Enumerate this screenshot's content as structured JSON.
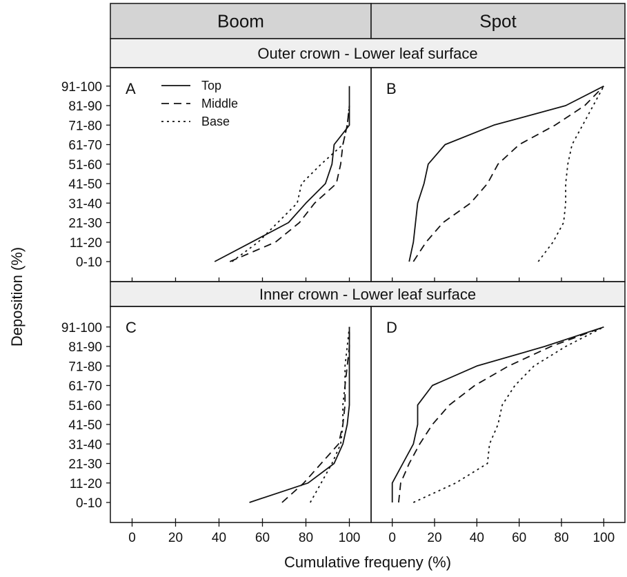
{
  "chart_data": {
    "type": "line",
    "xlabel": "Cumulative frequeny (%)",
    "ylabel": "Deposition (%)",
    "column_strips": [
      "Boom",
      "Spot"
    ],
    "row_strips": [
      "Outer crown - Lower leaf surface",
      "Inner crown - Lower leaf surface"
    ],
    "x_ticks": [
      0,
      20,
      40,
      60,
      80,
      100
    ],
    "xlim": [
      -10,
      110
    ],
    "y_categories": [
      "0-10",
      "11-20",
      "21-30",
      "31-40",
      "41-50",
      "51-60",
      "61-70",
      "71-80",
      "81-90",
      "91-100"
    ],
    "legend": [
      "Top",
      "Middle",
      "Base"
    ],
    "panels": [
      {
        "label": "A",
        "series": [
          {
            "name": "Top",
            "x": [
              38,
              55,
              72,
              80,
              89,
              92,
              93,
              100,
              100
            ],
            "y": [
              "0-10",
              "11-20",
              "21-30",
              "31-40",
              "41-50",
              "51-60",
              "61-70",
              "71-80",
              "91-100"
            ]
          },
          {
            "name": "Middle",
            "x": [
              45,
              66,
              77,
              84,
              94,
              96,
              97,
              99,
              100
            ],
            "y": [
              "0-10",
              "11-20",
              "21-30",
              "31-40",
              "41-50",
              "51-60",
              "61-70",
              "71-80",
              "81-90"
            ]
          },
          {
            "name": "Base",
            "x": [
              46,
              58,
              67,
              76,
              78,
              87,
              97,
              99,
              100
            ],
            "y": [
              "0-10",
              "11-20",
              "21-30",
              "31-40",
              "41-50",
              "51-60",
              "61-70",
              "71-80",
              "81-90"
            ]
          }
        ]
      },
      {
        "label": "B",
        "series": [
          {
            "name": "Top",
            "x": [
              8,
              10,
              11,
              12,
              15,
              17,
              25,
              48,
              82,
              100
            ],
            "y": [
              "0-10",
              "11-20",
              "21-30",
              "31-40",
              "41-50",
              "51-60",
              "61-70",
              "71-80",
              "81-90",
              "91-100"
            ]
          },
          {
            "name": "Middle",
            "x": [
              10,
              16,
              24,
              37,
              45,
              50,
              60,
              77,
              91,
              100
            ],
            "y": [
              "0-10",
              "11-20",
              "21-30",
              "31-40",
              "41-50",
              "51-60",
              "61-70",
              "71-80",
              "81-90",
              "91-100"
            ]
          },
          {
            "name": "Base",
            "x": [
              69,
              76,
              81,
              82,
              82,
              83,
              85,
              90,
              95,
              100
            ],
            "y": [
              "0-10",
              "11-20",
              "21-30",
              "31-40",
              "41-50",
              "51-60",
              "61-70",
              "71-80",
              "81-90",
              "91-100"
            ]
          }
        ]
      },
      {
        "label": "C",
        "series": [
          {
            "name": "Top",
            "x": [
              54,
              81,
              93,
              97,
              99,
              100,
              100,
              100,
              100,
              100
            ],
            "y": [
              "0-10",
              "11-20",
              "21-30",
              "31-40",
              "41-50",
              "51-60",
              "61-70",
              "71-80",
              "81-90",
              "91-100"
            ]
          },
          {
            "name": "Middle",
            "x": [
              69,
              79,
              87,
              95,
              97,
              98,
              98,
              99,
              100,
              100
            ],
            "y": [
              "0-10",
              "11-20",
              "21-30",
              "31-40",
              "41-50",
              "51-60",
              "61-70",
              "71-80",
              "81-90",
              "91-100"
            ]
          },
          {
            "name": "Base",
            "x": [
              82,
              87,
              92,
              96,
              97,
              97,
              98,
              98,
              99,
              100
            ],
            "y": [
              "0-10",
              "11-20",
              "21-30",
              "31-40",
              "41-50",
              "51-60",
              "61-70",
              "71-80",
              "81-90",
              "91-100"
            ]
          }
        ]
      },
      {
        "label": "D",
        "series": [
          {
            "name": "Top",
            "x": [
              0,
              0,
              5,
              10,
              12,
              12,
              19,
              40,
              72,
              100
            ],
            "y": [
              "0-10",
              "11-20",
              "21-30",
              "31-40",
              "41-50",
              "51-60",
              "61-70",
              "71-80",
              "81-90",
              "91-100"
            ]
          },
          {
            "name": "Middle",
            "x": [
              3,
              4,
              8,
              13,
              19,
              27,
              39,
              55,
              75,
              100
            ],
            "y": [
              "0-10",
              "11-20",
              "21-30",
              "31-40",
              "41-50",
              "51-60",
              "61-70",
              "71-80",
              "81-90",
              "91-100"
            ]
          },
          {
            "name": "Base",
            "x": [
              10,
              30,
              45,
              46,
              50,
              52,
              58,
              67,
              82,
              100
            ],
            "y": [
              "0-10",
              "11-20",
              "21-30",
              "31-40",
              "41-50",
              "51-60",
              "61-70",
              "71-80",
              "81-90",
              "91-100"
            ]
          }
        ]
      }
    ],
    "legend_placement": "top-left of panel A",
    "grid": false
  }
}
